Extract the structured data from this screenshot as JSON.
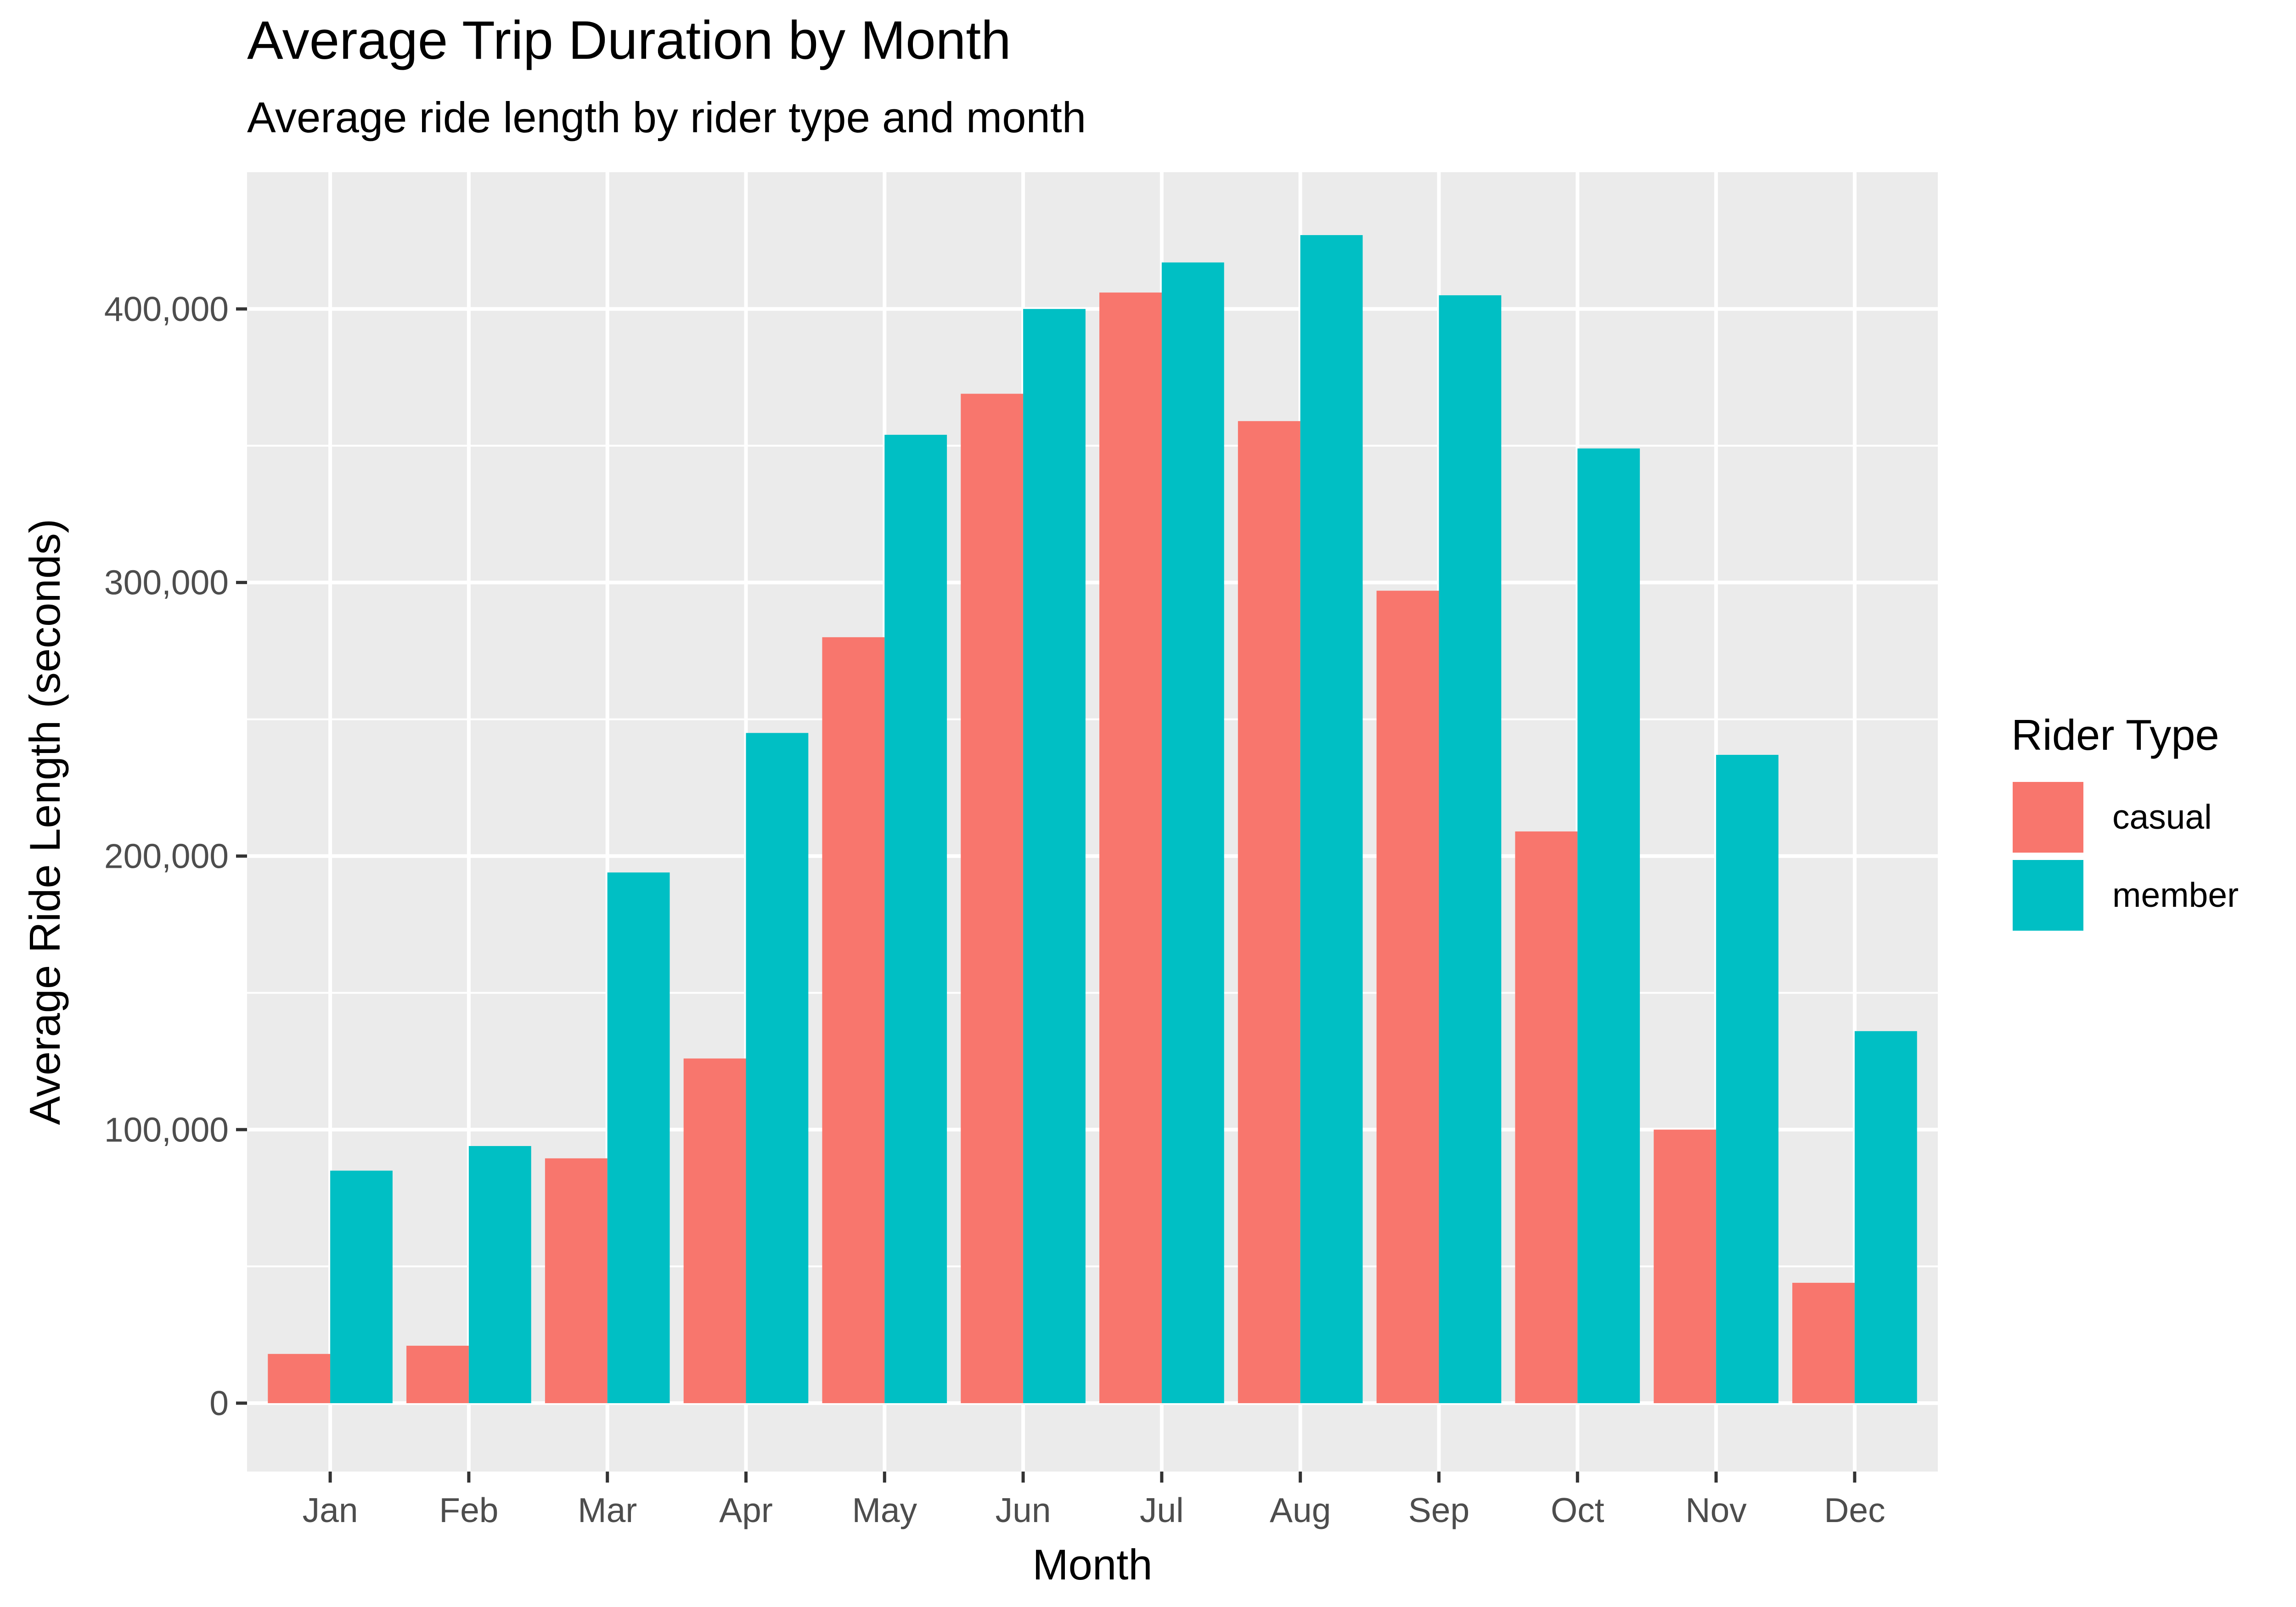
{
  "chart_data": {
    "type": "bar",
    "title": "Average Trip Duration by Month",
    "subtitle": "Average ride length by rider type and month",
    "xlabel": "Month",
    "ylabel": "Average Ride Length (seconds)",
    "categories": [
      "Jan",
      "Feb",
      "Mar",
      "Apr",
      "May",
      "Jun",
      "Jul",
      "Aug",
      "Sep",
      "Oct",
      "Nov",
      "Dec"
    ],
    "series": [
      {
        "name": "casual",
        "color": "#F8766D",
        "values": [
          18000,
          21000,
          89500,
          126000,
          280000,
          369000,
          406000,
          359000,
          297000,
          209000,
          100000,
          44000
        ]
      },
      {
        "name": "member",
        "color": "#00BFC4",
        "values": [
          85000,
          94000,
          194000,
          245000,
          354000,
          400000,
          417000,
          427000,
          405000,
          349000,
          237000,
          136000
        ]
      }
    ],
    "ylim": [
      -25000,
      450000
    ],
    "yticks": [
      0,
      100000,
      200000,
      300000,
      400000
    ],
    "ytick_labels": [
      "0",
      "100,000",
      "200,000",
      "300,000",
      "400,000"
    ],
    "grid": true,
    "panel_background": "#EBEBEB",
    "legend": {
      "title": "Rider Type",
      "position": "right"
    }
  }
}
